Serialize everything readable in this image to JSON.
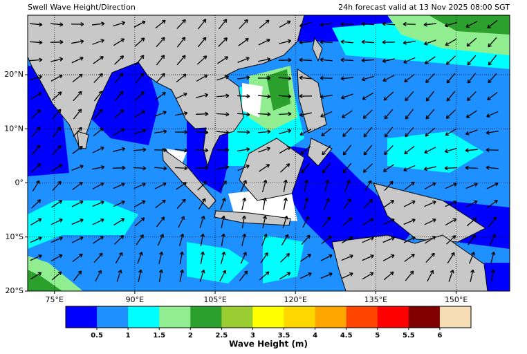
{
  "header": {
    "left_title": "Swell Wave Height/Direction",
    "right_title": "24h forecast valid at 13 Nov 2025 08:00 SGT"
  },
  "map": {
    "xlim": [
      70,
      160
    ],
    "ylim": [
      -20,
      31
    ],
    "xticks": [
      {
        "value": 75,
        "label": "75°E"
      },
      {
        "value": 90,
        "label": "90°E"
      },
      {
        "value": 105,
        "label": "105°E"
      },
      {
        "value": 120,
        "label": "120°E"
      },
      {
        "value": 135,
        "label": "135°E"
      },
      {
        "value": 150,
        "label": "150°E"
      }
    ],
    "yticks": [
      {
        "value": 20,
        "label": "20°N"
      },
      {
        "value": 10,
        "label": "10°N"
      },
      {
        "value": 0,
        "label": "0°"
      },
      {
        "value": -10,
        "label": "10°S"
      },
      {
        "value": -20,
        "label": "20°S"
      }
    ]
  },
  "colorbar": {
    "label": "Wave Height (m)",
    "colors": [
      "#0000ff",
      "#1e90ff",
      "#00ffff",
      "#90ee90",
      "#2ca02c",
      "#9acd32",
      "#ffff00",
      "#ffd700",
      "#ffa500",
      "#ff4500",
      "#ff0000",
      "#800000",
      "#f5deb3"
    ],
    "ticks": [
      0.5,
      1,
      1.5,
      2,
      2.5,
      3,
      3.5,
      4,
      4.5,
      5,
      5.5,
      6
    ]
  }
}
